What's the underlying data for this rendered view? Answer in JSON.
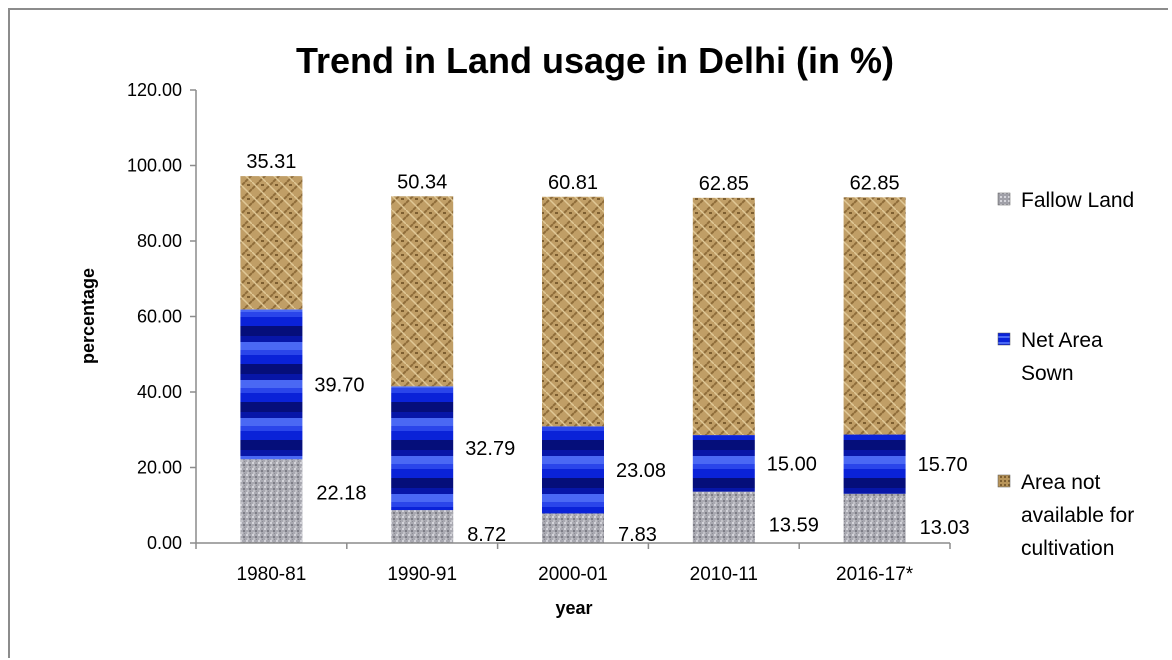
{
  "chart_data": {
    "type": "bar",
    "stacked": true,
    "title": "Trend in Land usage in Delhi (in %)",
    "xlabel": "year",
    "ylabel": "percentage",
    "ylim": [
      0,
      120
    ],
    "yticks": [
      "0.00",
      "20.00",
      "40.00",
      "60.00",
      "80.00",
      "100.00",
      "120.00"
    ],
    "categories": [
      "1980-81",
      "1990-91",
      "2000-01",
      "2010-11",
      "2016-17*"
    ],
    "series": [
      {
        "name": "Fallow Land",
        "values": [
          22.18,
          8.72,
          7.83,
          13.59,
          13.03
        ],
        "labels": [
          "22.18",
          "8.72",
          "7.83",
          "13.59",
          "13.03"
        ],
        "color": "#a8a8b0"
      },
      {
        "name": "Net Area Sown",
        "values": [
          39.7,
          32.79,
          23.08,
          15.0,
          15.7
        ],
        "labels": [
          "39.70",
          "32.79",
          "23.08",
          "15.00",
          "15.70"
        ],
        "color": "#0a1fd6"
      },
      {
        "name": "Area not available for cultivation",
        "values": [
          35.31,
          50.34,
          60.81,
          62.85,
          62.85
        ],
        "labels": [
          "35.31",
          "50.34",
          "60.81",
          "62.85",
          "62.85"
        ],
        "color": "#b8955a"
      }
    ],
    "legend_position": "right",
    "legend_lines": [
      [
        "Fallow Land"
      ],
      [
        "Net Area",
        "Sown"
      ],
      [
        "Area not",
        "available for",
        "cultivation"
      ]
    ],
    "grid": false
  }
}
